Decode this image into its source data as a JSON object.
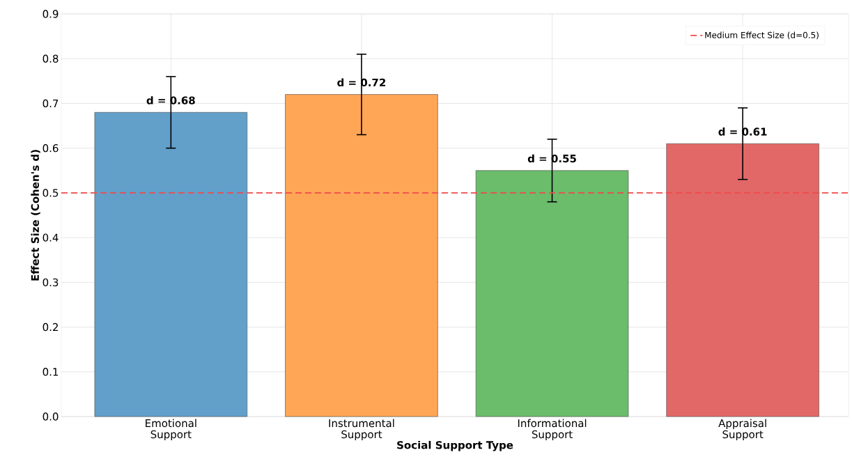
{
  "chart_data": {
    "type": "bar",
    "xlabel": "Social Support Type",
    "ylabel": "Effect Size (Cohen's d)",
    "categories": [
      "Emotional Support",
      "Instrumental Support",
      "Informational Support",
      "Appraisal Support"
    ],
    "values": [
      0.68,
      0.72,
      0.55,
      0.61
    ],
    "errors": [
      0.08,
      0.09,
      0.07,
      0.08
    ],
    "colors": [
      "#62a0ca",
      "#ffa556",
      "#6bbc6b",
      "#e26868"
    ],
    "value_labels": [
      "d = 0.68",
      "d = 0.72",
      "d = 0.55",
      "d = 0.61"
    ],
    "ylim": [
      0,
      0.9
    ],
    "yticks": [
      {
        "value": 0,
        "label": "0.0"
      },
      0.1,
      0.2,
      0.3,
      0.4,
      0.5,
      0.6,
      0.7,
      0.8,
      0.9
    ],
    "ref_lines": [
      {
        "axis": "y",
        "value": 0.5,
        "label": "Medium Effect Size (d=0.5)",
        "color": "#f04a4a",
        "line_style": "dashed"
      }
    ],
    "grid": true,
    "legend": "top right"
  }
}
